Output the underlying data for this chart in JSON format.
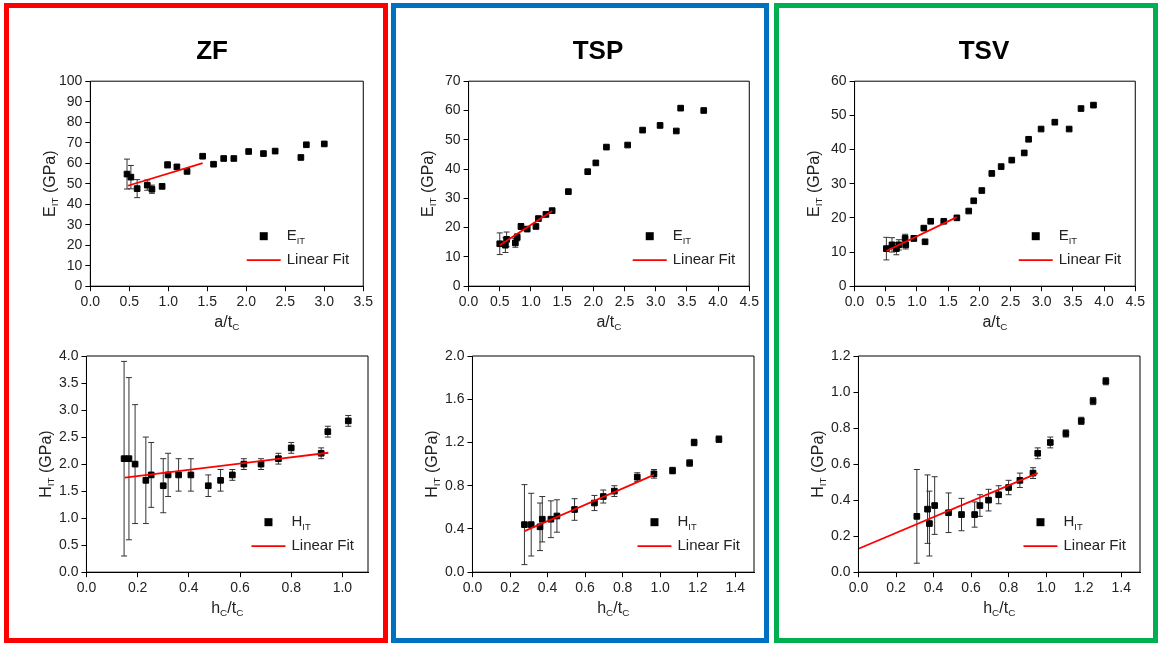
{
  "chart_data": [
    {
      "type": "scatter",
      "title": "ZF",
      "xlabel": "a/t$_{C}$",
      "ylabel": "E$_{IT}$ (GPa)",
      "xlim": [
        0,
        3.5
      ],
      "ylim": [
        0,
        100
      ],
      "xticks": [
        {
          "value": 0,
          "label": "0.0"
        },
        0.5,
        {
          "value": 1,
          "label": "1.0"
        },
        1.5,
        {
          "value": 2,
          "label": "2.0"
        },
        2.5,
        {
          "value": 3,
          "label": "3.0"
        },
        3.5
      ],
      "yticks": [
        0,
        10,
        20,
        30,
        40,
        50,
        60,
        70,
        80,
        90,
        100
      ],
      "grid": false,
      "legend": "bottom right",
      "series": [
        {
          "name": "E$_{IT}$",
          "marker": "square",
          "color": "#000000",
          "x": [
            0.47,
            0.52,
            0.6,
            0.73,
            0.79,
            0.92,
            0.99,
            1.11,
            1.24,
            1.44,
            1.58,
            1.71,
            1.84,
            2.03,
            2.22,
            2.37,
            2.7,
            2.77,
            3.0
          ],
          "values": [
            54.7,
            53.2,
            47.6,
            49.3,
            47.3,
            48.7,
            59.2,
            58.2,
            56,
            63.4,
            59.5,
            62.3,
            62.3,
            65.7,
            64.7,
            65.9,
            62.8,
            69,
            69.4
          ],
          "errors": [
            7.3,
            5.7,
            4.4,
            2.5,
            2,
            1,
            1.5,
            1,
            null,
            1,
            null,
            null,
            null,
            null,
            null,
            null,
            null,
            null,
            null
          ]
        },
        {
          "name": "Linear Fit",
          "type": "line",
          "marker": "none",
          "color": "#ff0000",
          "x": [
            0.48,
            1.44
          ],
          "values": [
            49.0,
            60.0
          ]
        }
      ]
    },
    {
      "type": "scatter",
      "title": "TSP",
      "xlabel": "a/t$_{C}$",
      "ylabel": "E$_{IT}$ (GPa)",
      "xlim": [
        0,
        4.5
      ],
      "ylim": [
        0,
        70
      ],
      "xticks": [
        {
          "value": 0,
          "label": "0.0"
        },
        0.5,
        {
          "value": 1,
          "label": "1.0"
        },
        1.5,
        {
          "value": 2,
          "label": "2.0"
        },
        2.5,
        {
          "value": 3,
          "label": "3.0"
        },
        3.5,
        {
          "value": 4,
          "label": "4.0"
        },
        4.5
      ],
      "yticks": [
        0,
        10,
        20,
        30,
        40,
        50,
        60,
        70
      ],
      "grid": false,
      "legend": "bottom right",
      "series": [
        {
          "name": "E$_{IT}$",
          "marker": "square",
          "color": "#000000",
          "x": [
            0.5,
            0.59,
            0.61,
            0.75,
            0.78,
            0.84,
            0.94,
            1.08,
            1.12,
            1.24,
            1.34,
            1.6,
            1.91,
            2.04,
            2.21,
            2.55,
            2.79,
            3.07,
            3.33,
            3.4,
            3.77
          ],
          "values": [
            14.5,
            14,
            16,
            14.8,
            16.7,
            20.4,
            19.5,
            20.4,
            23.1,
            24.5,
            25.8,
            32.3,
            39.1,
            42.1,
            47.5,
            48.2,
            53.3,
            54.9,
            53,
            60.8,
            60
          ],
          "errors": [
            3.7,
            2.5,
            2.5,
            1.5,
            1.2,
            1,
            null,
            null,
            null,
            null,
            null,
            null,
            null,
            null,
            null,
            null,
            null,
            null,
            null,
            null,
            null
          ]
        },
        {
          "name": "Linear Fit",
          "type": "line",
          "marker": "none",
          "color": "#ff0000",
          "x": [
            0.5,
            1.34
          ],
          "values": [
            14.0,
            25.7
          ]
        }
      ]
    },
    {
      "type": "scatter",
      "title": "TSV",
      "xlabel": "a/t$_{C}$",
      "ylabel": "E$_{IT}$ (GPa)",
      "xlim": [
        0,
        4.5
      ],
      "ylim": [
        0,
        60
      ],
      "xticks": [
        {
          "value": 0,
          "label": "0.0"
        },
        0.5,
        {
          "value": 1,
          "label": "1.0"
        },
        1.5,
        {
          "value": 2,
          "label": "2.0"
        },
        2.5,
        {
          "value": 3,
          "label": "3.0"
        },
        3.5,
        {
          "value": 4,
          "label": "4.0"
        },
        4.5
      ],
      "yticks": [
        0,
        10,
        20,
        30,
        40,
        50,
        60
      ],
      "grid": false,
      "legend": "bottom right",
      "series": [
        {
          "name": "E$_{IT}$",
          "marker": "square",
          "color": "#000000",
          "x": [
            0.51,
            0.6,
            0.67,
            0.71,
            0.81,
            0.82,
            0.95,
            1.11,
            1.13,
            1.22,
            1.43,
            1.64,
            1.83,
            1.91,
            2.04,
            2.2,
            2.35,
            2.52,
            2.72,
            2.79,
            2.99,
            3.21,
            3.44,
            3.63,
            3.83
          ],
          "values": [
            11,
            12.1,
            11,
            12.1,
            14,
            12.1,
            14,
            17,
            13,
            19,
            19,
            20,
            22,
            25,
            28,
            33,
            35,
            36.9,
            39,
            43,
            46,
            48,
            46,
            52,
            53
          ],
          "errors": [
            3.3,
            2.1,
            1.8,
            1.5,
            1.2,
            1.2,
            0.8,
            null,
            null,
            null,
            null,
            null,
            null,
            null,
            null,
            null,
            null,
            null,
            null,
            null,
            null,
            null,
            null,
            null,
            null
          ]
        },
        {
          "name": "Linear Fit",
          "type": "line",
          "marker": "none",
          "color": "#ff0000",
          "x": [
            0.51,
            1.64
          ],
          "values": [
            10.3,
            20.2
          ]
        }
      ]
    },
    {
      "type": "scatter",
      "xlabel": "h$_{C}$/t$_{C}$",
      "ylabel": "H$_{IT}$ (GPa)",
      "xlim": [
        0,
        1.1
      ],
      "ylim": [
        0,
        4
      ],
      "xticks": [
        {
          "value": 0,
          "label": "0.0"
        },
        0.2,
        0.4,
        0.6,
        0.8,
        {
          "value": 1,
          "label": "1.0"
        }
      ],
      "yticks": [
        {
          "value": 0,
          "label": "0.0"
        },
        0.5,
        {
          "value": 1,
          "label": "1.0"
        },
        1.5,
        {
          "value": 2,
          "label": "2.0"
        },
        2.5,
        {
          "value": 3,
          "label": "3.0"
        },
        3.5,
        {
          "value": 4,
          "label": "4.0"
        }
      ],
      "grid": false,
      "legend": "bottom right",
      "series": [
        {
          "name": "H$_{IT}$",
          "marker": "square",
          "color": "#000000",
          "x": [
            0.147,
            0.166,
            0.19,
            0.232,
            0.253,
            0.3,
            0.319,
            0.36,
            0.408,
            0.476,
            0.524,
            0.57,
            0.615,
            0.682,
            0.75,
            0.8,
            0.917,
            0.943,
            1.023
          ],
          "values": [
            2.1,
            2.1,
            2.0,
            1.7,
            1.8,
            1.6,
            1.8,
            1.8,
            1.8,
            1.6,
            1.7,
            1.8,
            2.0,
            2.0,
            2.1,
            2.3,
            2.2,
            2.6,
            2.8
          ],
          "errors": [
            1.8,
            1.5,
            1.1,
            0.8,
            0.6,
            0.5,
            0.4,
            0.3,
            0.3,
            0.2,
            0.2,
            0.1,
            0.1,
            0.1,
            0.1,
            0.1,
            0.1,
            0.1,
            0.1
          ]
        },
        {
          "name": "Linear Fit",
          "type": "line",
          "marker": "none",
          "color": "#ff0000",
          "x": [
            0.15,
            0.945
          ],
          "values": [
            1.75,
            2.21
          ]
        }
      ]
    },
    {
      "type": "scatter",
      "xlabel": "h$_{C}$/t$_{C}$",
      "ylabel": "H$_{IT}$ (GPa)",
      "xlim": [
        0,
        1.5
      ],
      "ylim": [
        0,
        2
      ],
      "xticks": [
        {
          "value": 0,
          "label": "0.0"
        },
        0.2,
        0.4,
        0.6,
        0.8,
        {
          "value": 1,
          "label": "1.0"
        },
        1.2,
        1.4
      ],
      "yticks": [
        {
          "value": 0,
          "label": "0.0"
        },
        0.4,
        0.8,
        1.2,
        1.6,
        {
          "value": 2,
          "label": "2.0"
        }
      ],
      "grid": false,
      "legend": "bottom right",
      "series": [
        {
          "name": "H$_{IT}$",
          "marker": "square",
          "color": "#000000",
          "x": [
            0.277,
            0.313,
            0.36,
            0.372,
            0.418,
            0.45,
            0.544,
            0.65,
            0.697,
            0.756,
            0.878,
            0.967,
            1.066,
            1.157,
            1.181,
            1.313
          ],
          "values": [
            0.44,
            0.44,
            0.42,
            0.49,
            0.49,
            0.52,
            0.58,
            0.64,
            0.7,
            0.75,
            0.88,
            0.91,
            0.94,
            1.01,
            1.2,
            1.23
          ],
          "errors": [
            0.37,
            0.29,
            0.22,
            0.21,
            0.17,
            0.15,
            0.1,
            0.07,
            0.06,
            0.05,
            0.04,
            0.04,
            0.03,
            0.03,
            0.03,
            0.03
          ]
        },
        {
          "name": "Linear Fit",
          "type": "line",
          "color": "#ff0000",
          "x": [
            0.277,
            0.967
          ],
          "values": [
            0.38,
            0.9
          ]
        }
      ]
    },
    {
      "type": "scatter",
      "xlabel": "h$_{C}$/t$_{C}$",
      "ylabel": "H$_{IT}$ (GPa)",
      "xlim": [
        0,
        1.5
      ],
      "ylim": [
        0,
        1.2
      ],
      "xticks": [
        {
          "value": 0,
          "label": "0.0"
        },
        0.2,
        0.4,
        0.6,
        0.8,
        {
          "value": 1,
          "label": "1.0"
        },
        1.2,
        1.4
      ],
      "yticks": [
        {
          "value": 0,
          "label": "0.0"
        },
        0.2,
        0.4,
        0.6,
        0.8,
        {
          "value": 1,
          "label": "1.0"
        },
        1.2
      ],
      "grid": false,
      "legend": "bottom right",
      "series": [
        {
          "name": "H$_{IT}$",
          "marker": "square",
          "color": "#000000",
          "x": [
            0.311,
            0.368,
            0.378,
            0.406,
            0.48,
            0.549,
            0.619,
            0.647,
            0.693,
            0.747,
            0.8,
            0.86,
            0.93,
            0.955,
            1.022,
            1.105,
            1.187,
            1.25,
            1.318
          ],
          "values": [
            0.31,
            0.35,
            0.27,
            0.37,
            0.33,
            0.32,
            0.32,
            0.37,
            0.4,
            0.43,
            0.47,
            0.51,
            0.55,
            0.66,
            0.72,
            0.77,
            0.84,
            0.95,
            1.06
          ],
          "errors": [
            0.26,
            0.19,
            0.18,
            0.16,
            0.11,
            0.09,
            0.07,
            0.06,
            0.06,
            0.05,
            0.04,
            0.04,
            0.03,
            0.03,
            0.03,
            0.02,
            0.02,
            0.02,
            0.02
          ]
        },
        {
          "name": "Linear Fit",
          "type": "line",
          "marker": "none",
          "color": "#ff0000",
          "x": [
            0,
            0.955
          ],
          "values": [
            0.13,
            0.55
          ]
        }
      ]
    }
  ]
}
